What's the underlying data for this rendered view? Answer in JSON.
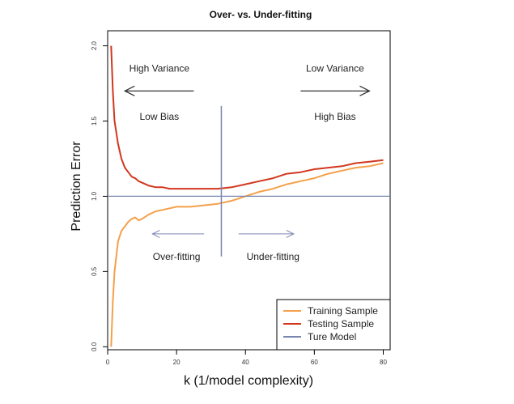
{
  "chart_data": {
    "type": "line",
    "title": "Over- vs. Under-fitting",
    "xlabel": "k (1/model complexity)",
    "ylabel": "Prediction Error",
    "xlim": [
      0,
      82
    ],
    "ylim": [
      -0.02,
      2.1
    ],
    "x_ticks": [
      0,
      20,
      40,
      60,
      80
    ],
    "y_ticks": [
      0.0,
      0.5,
      1.0,
      1.5,
      2.0
    ],
    "x_tick_labels": [
      "0",
      "20",
      "40",
      "60",
      "80"
    ],
    "y_tick_labels": [
      "0.0",
      "0.5",
      "1.0",
      "1.5",
      "2.0"
    ],
    "series": [
      {
        "name": "Training Sample",
        "color": "#F5A04A",
        "x": [
          1,
          1.5,
          2,
          3,
          4,
          5,
          6,
          7,
          8,
          9,
          10,
          12,
          14,
          16,
          18,
          20,
          24,
          28,
          32,
          36,
          40,
          44,
          48,
          52,
          56,
          60,
          64,
          68,
          72,
          76,
          80
        ],
        "y": [
          0.0,
          0.3,
          0.5,
          0.7,
          0.77,
          0.8,
          0.83,
          0.85,
          0.86,
          0.84,
          0.85,
          0.88,
          0.9,
          0.91,
          0.92,
          0.93,
          0.93,
          0.94,
          0.95,
          0.97,
          1.0,
          1.03,
          1.05,
          1.08,
          1.1,
          1.12,
          1.15,
          1.17,
          1.19,
          1.2,
          1.22
        ]
      },
      {
        "name": "Testing Sample",
        "color": "#D2371E",
        "x": [
          1,
          1.5,
          2,
          3,
          4,
          5,
          6,
          7,
          8,
          9,
          10,
          12,
          14,
          16,
          18,
          20,
          24,
          28,
          32,
          36,
          40,
          44,
          48,
          52,
          56,
          60,
          64,
          68,
          72,
          76,
          80
        ],
        "y": [
          2.0,
          1.7,
          1.5,
          1.35,
          1.25,
          1.19,
          1.16,
          1.13,
          1.12,
          1.1,
          1.09,
          1.07,
          1.06,
          1.06,
          1.05,
          1.05,
          1.05,
          1.05,
          1.05,
          1.06,
          1.08,
          1.1,
          1.12,
          1.15,
          1.16,
          1.18,
          1.19,
          1.2,
          1.22,
          1.23,
          1.24
        ]
      },
      {
        "name": "Ture Model",
        "color": "#7A86B0",
        "x": [
          -4,
          86
        ],
        "y": [
          1.0,
          1.0
        ]
      }
    ],
    "divider": {
      "x": 33,
      "y_range": [
        0.6,
        1.6
      ],
      "color": "#7A86B0"
    },
    "annotations": [
      {
        "text": "High Variance",
        "x": 15,
        "y": 1.85
      },
      {
        "text": "Low Bias",
        "x": 15,
        "y": 1.53
      },
      {
        "text": "Low Variance",
        "x": 66,
        "y": 1.85
      },
      {
        "text": "High Bias",
        "x": 66,
        "y": 1.53
      },
      {
        "text": "Over-fitting",
        "x": 20,
        "y": 0.6
      },
      {
        "text": "Under-fitting",
        "x": 48,
        "y": 0.6
      }
    ],
    "arrows": [
      {
        "name": "high-variance-arrow",
        "x_from": 25,
        "x_to": 5,
        "y": 1.7,
        "color": "#333333",
        "weight": "heavy"
      },
      {
        "name": "low-variance-arrow",
        "x_from": 56,
        "x_to": 76,
        "y": 1.7,
        "color": "#333333",
        "weight": "heavy"
      },
      {
        "name": "over-fitting-arrow",
        "x_from": 28,
        "x_to": 13,
        "y": 0.75,
        "color": "#7A86B0",
        "weight": "light"
      },
      {
        "name": "under-fitting-arrow",
        "x_from": 38,
        "x_to": 54,
        "y": 0.75,
        "color": "#7A86B0",
        "weight": "light"
      }
    ],
    "legend": {
      "position": "bottom-right",
      "entries": [
        "Training Sample",
        "Testing Sample",
        "Ture Model"
      ]
    },
    "grid": false
  }
}
